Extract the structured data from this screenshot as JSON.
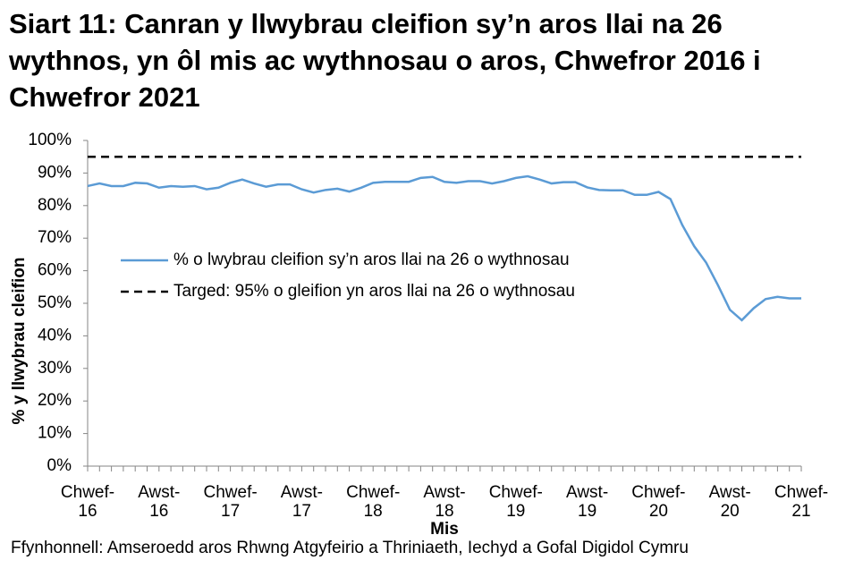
{
  "chart_data": {
    "type": "line",
    "title": "Siart 11: Canran y llwybrau cleifion sy’n aros llai na 26 wythnos, yn ôl mis ac wythnosau o aros, Chwefror 2016 i Chwefror 2021",
    "x_label": "Mis",
    "y_label": "% y llwybrau cleifion",
    "source": "Ffynhonnell: Amseroedd aros Rhwng Atgyfeirio a Thriniaeth, Iechyd a Gofal Digidol Cymru",
    "categories": [
      "Chwef-16",
      null,
      null,
      null,
      null,
      null,
      "Awst-16",
      null,
      null,
      null,
      null,
      null,
      "Chwef-17",
      null,
      null,
      null,
      null,
      null,
      "Awst-17",
      null,
      null,
      null,
      null,
      null,
      "Chwef-18",
      null,
      null,
      null,
      null,
      null,
      "Awst-18",
      null,
      null,
      null,
      null,
      null,
      "Chwef-19",
      null,
      null,
      null,
      null,
      null,
      "Awst-19",
      null,
      null,
      null,
      null,
      null,
      "Chwef-20",
      null,
      null,
      null,
      null,
      null,
      "Awst-20",
      null,
      null,
      null,
      null,
      null,
      "Chwef-21"
    ],
    "series": [
      {
        "name": "% o lwybrau cleifion sy’n aros llai na 26 o wythnosau",
        "color": "#5b9bd5",
        "dashed": false,
        "values": [
          86,
          86.8,
          86,
          86,
          87,
          86.8,
          85.5,
          86,
          85.8,
          86,
          85,
          85.5,
          87,
          88,
          86.8,
          85.8,
          86.5,
          86.5,
          85,
          84,
          84.8,
          85.2,
          84.3,
          85.5,
          87,
          87.3,
          87.3,
          87.3,
          88.5,
          88.8,
          87.3,
          87,
          87.5,
          87.5,
          86.8,
          87.5,
          88.5,
          89,
          88,
          86.8,
          87.2,
          87.2,
          85.6,
          84.8,
          84.7,
          84.7,
          83.3,
          83.3,
          84.2,
          82,
          74,
          67.5,
          62.5,
          55.5,
          48,
          44.8,
          48.5,
          51.3,
          52,
          51.5,
          51.5
        ]
      },
      {
        "name": "Targed: 95% o gleifion yn aros llai na 26 o wythnosau",
        "color": "#000000",
        "dashed": true,
        "values": [
          95,
          95,
          95,
          95,
          95,
          95,
          95,
          95,
          95,
          95,
          95,
          95,
          95,
          95,
          95,
          95,
          95,
          95,
          95,
          95,
          95,
          95,
          95,
          95,
          95,
          95,
          95,
          95,
          95,
          95,
          95,
          95,
          95,
          95,
          95,
          95,
          95,
          95,
          95,
          95,
          95,
          95,
          95,
          95,
          95,
          95,
          95,
          95,
          95,
          95,
          95,
          95,
          95,
          95,
          95,
          95,
          95,
          95,
          95,
          95,
          95
        ]
      }
    ],
    "ylim": [
      0,
      100
    ],
    "yticks": [
      {
        "value": 0,
        "label": "0%"
      },
      {
        "value": 10,
        "label": "10%"
      },
      {
        "value": 20,
        "label": "20%"
      },
      {
        "value": 30,
        "label": "30%"
      },
      {
        "value": 40,
        "label": "40%"
      },
      {
        "value": 50,
        "label": "50%"
      },
      {
        "value": 60,
        "label": "60%"
      },
      {
        "value": 70,
        "label": "70%"
      },
      {
        "value": 80,
        "label": "80%"
      },
      {
        "value": 90,
        "label": "90%"
      },
      {
        "value": 100,
        "label": "100%"
      }
    ],
    "grid": false
  }
}
